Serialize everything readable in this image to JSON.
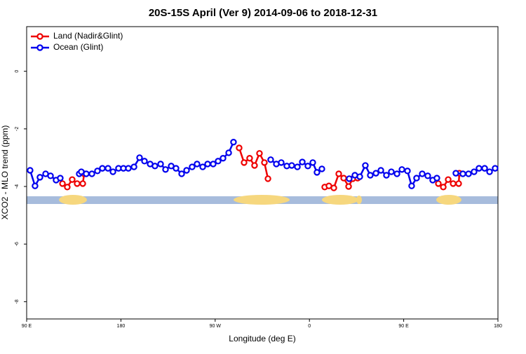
{
  "chart_data": {
    "type": "line",
    "title": "20S-15S April (Ver 9)   2014-09-06 to 2018-12-31",
    "x_label": "Longitude (deg E)",
    "y_label": "XCO2 - MLO trend (ppm)",
    "xlim": [
      90,
      540
    ],
    "xticks": [
      {
        "value": 90,
        "label": "90 E"
      },
      {
        "value": 180,
        "label": "180"
      },
      {
        "value": 270,
        "label": "90 W"
      },
      {
        "value": 360,
        "label": "0"
      },
      {
        "value": 450,
        "label": "90 E"
      },
      {
        "value": 540,
        "label": "180"
      }
    ],
    "ylim": [
      -8.6,
      1.55
    ],
    "yticks": [
      0,
      -2,
      -4,
      -6,
      -8
    ],
    "legend": "top-left",
    "series": [
      {
        "name": "Land (Nadir&Glint)",
        "color": "#ee0000",
        "x": [
          124.2,
          128.8,
          133.5,
          138.2,
          143.6,
          144.9,
          null,
          292.9,
          297.6,
          302.9,
          307.6,
          312.3,
          317.0,
          320.4,
          null,
          374.6,
          378.6,
          383.3,
          388.0,
          392.7,
          397.4,
          401.4,
          406.1,
          null,
          483.1,
          487.8,
          492.5,
          497.2,
          502.5,
          503.2
        ],
        "values": [
          -3.9,
          -4.02,
          -3.76,
          -3.9,
          -3.9,
          -3.56,
          null,
          -2.66,
          -3.17,
          -3.02,
          -3.27,
          -2.85,
          -3.17,
          -3.73,
          null,
          -4.02,
          -3.98,
          -4.05,
          -3.56,
          -3.71,
          -4.0,
          -3.73,
          -3.71,
          null,
          -3.9,
          -4.02,
          -3.76,
          -3.9,
          -3.9,
          -3.54
        ]
      },
      {
        "name": "Ocean (Glint)",
        "color": "#0000ee",
        "x": [
          93.3,
          98.0,
          102.7,
          108.1,
          112.8,
          118.1,
          122.1,
          null,
          140.2,
          142.2,
          146.9,
          152.3,
          157.6,
          162.3,
          167.7,
          172.4,
          177.7,
          182.4,
          187.1,
          192.5,
          197.8,
          202.5,
          207.9,
          212.5,
          217.9,
          222.6,
          228.0,
          232.6,
          238.0,
          242.7,
          248.0,
          252.7,
          258.1,
          262.8,
          268.1,
          272.8,
          277.5,
          282.9,
          287.5,
          null,
          323.0,
          328.4,
          333.1,
          338.4,
          343.1,
          348.5,
          353.2,
          358.5,
          363.2,
          367.2,
          371.9,
          null,
          398.0,
          403.4,
          408.1,
          413.4,
          418.1,
          423.5,
          428.2,
          433.5,
          438.2,
          443.6,
          448.3,
          453.6,
          457.6,
          462.3,
          467.7,
          473.0,
          477.7,
          481.7,
          null,
          499.8,
          506.5,
          511.9,
          517.2,
          521.9,
          527.3,
          532.0,
          537.3
        ],
        "values": [
          -3.44,
          -3.98,
          -3.68,
          -3.56,
          -3.63,
          -3.78,
          -3.71,
          null,
          -3.56,
          -3.49,
          -3.56,
          -3.56,
          -3.46,
          -3.37,
          -3.37,
          -3.49,
          -3.37,
          -3.37,
          -3.37,
          -3.32,
          -3.0,
          -3.12,
          -3.22,
          -3.29,
          -3.22,
          -3.41,
          -3.29,
          -3.37,
          -3.56,
          -3.44,
          -3.32,
          -3.22,
          -3.32,
          -3.22,
          -3.22,
          -3.12,
          -3.02,
          -2.83,
          -2.46,
          null,
          -3.07,
          -3.22,
          -3.17,
          -3.29,
          -3.27,
          -3.32,
          -3.15,
          -3.29,
          -3.17,
          -3.51,
          -3.39,
          null,
          -3.73,
          -3.61,
          -3.66,
          -3.27,
          -3.61,
          -3.54,
          -3.44,
          -3.61,
          -3.49,
          -3.56,
          -3.41,
          -3.46,
          -3.98,
          -3.71,
          -3.56,
          -3.63,
          -3.78,
          -3.71,
          null,
          -3.54,
          -3.56,
          -3.56,
          -3.49,
          -3.37,
          -3.37,
          -3.49,
          -3.37
        ]
      }
    ]
  }
}
